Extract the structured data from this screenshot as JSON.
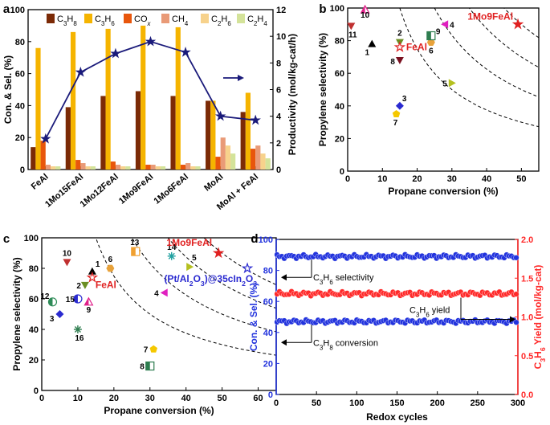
{
  "chart_data": [
    {
      "panel": "a",
      "type": "bar",
      "title": "",
      "xlabel": "",
      "ylabel": "Con. & Sel. (%)",
      "y2label": "Productivity (mol/kg-cat/h)",
      "ylim": [
        0,
        100
      ],
      "y2lim": [
        0,
        12
      ],
      "yticks": [
        "0",
        "20",
        "40",
        "60",
        "80",
        "100"
      ],
      "y2ticks": [
        "0",
        "2",
        "4",
        "6",
        "8",
        "10",
        "12"
      ],
      "categories": [
        "FeAl",
        "1Mo15FeAl",
        "1Mo12FeAl",
        "1Mo9FeAl",
        "1Mo6FeAl",
        "MoAl",
        "MoAl + FeAl"
      ],
      "series": [
        {
          "name": "C3H8",
          "color": "#7b2a06",
          "values": [
            14,
            39,
            46,
            49,
            46,
            43,
            36
          ]
        },
        {
          "name": "C3H6",
          "color": "#f5b400",
          "values": [
            76,
            86,
            88,
            90,
            89,
            43,
            48
          ]
        },
        {
          "name": "COx",
          "color": "#e8560c",
          "values": [
            18,
            6,
            5,
            3,
            3,
            8,
            13
          ]
        },
        {
          "name": "CH4",
          "color": "#e99a77",
          "values": [
            3,
            4,
            3,
            3,
            4,
            20,
            15
          ]
        },
        {
          "name": "C2H6",
          "color": "#f7d28c",
          "values": [
            2,
            2,
            2,
            2,
            2,
            15,
            10
          ]
        },
        {
          "name": "C2H4",
          "color": "#d4e39a",
          "values": [
            2,
            2,
            2,
            2,
            2,
            10,
            7
          ]
        }
      ],
      "line": {
        "name": "Productivity",
        "color": "#1a1a7a",
        "values": [
          2.3,
          7.3,
          8.7,
          9.6,
          8.8,
          4.0,
          3.7
        ]
      }
    },
    {
      "panel": "b",
      "type": "scatter",
      "xlabel": "Propane conversion (%)",
      "ylabel": "Propylene selectivity (%)",
      "xlim": [
        0,
        55
      ],
      "ylim": [
        0,
        100
      ],
      "xticks": [
        "0",
        "10",
        "20",
        "30",
        "40",
        "50"
      ],
      "yticks": [
        "0",
        "20",
        "40",
        "60",
        "80",
        "100"
      ],
      "points": [
        {
          "label": "1",
          "x": 7,
          "y": 78,
          "color": "#000000",
          "marker": "tri-up"
        },
        {
          "label": "2",
          "x": 15,
          "y": 79,
          "color": "#6b8e23",
          "marker": "tri-down"
        },
        {
          "label": "3",
          "x": 15,
          "y": 40,
          "color": "#2a2ad0",
          "marker": "diamond"
        },
        {
          "label": "4",
          "x": 28,
          "y": 90,
          "color": "#e020c0",
          "marker": "tri-left"
        },
        {
          "label": "5",
          "x": 30,
          "y": 54,
          "color": "#b5c020",
          "marker": "tri-right"
        },
        {
          "label": "6",
          "x": 24,
          "y": 79,
          "color": "#e8a23a",
          "marker": "hexagon"
        },
        {
          "label": "7",
          "x": 14,
          "y": 35,
          "color": "#f5c800",
          "marker": "pentagon"
        },
        {
          "label": "8",
          "x": 15,
          "y": 68,
          "color": "#7a1020",
          "marker": "tri-down"
        },
        {
          "label": "9",
          "x": 24,
          "y": 83,
          "color": "#2e7d4f",
          "marker": "half-square"
        },
        {
          "label": "10",
          "x": 5,
          "y": 99,
          "color": "#e0208a",
          "marker": "half-tri"
        },
        {
          "label": "11",
          "x": 1,
          "y": 89,
          "color": "#c03030",
          "marker": "tri-down"
        },
        {
          "label": "FeAl",
          "x": 15,
          "y": 76,
          "color": "#e02020",
          "marker": "star-open"
        },
        {
          "label": "1Mo9FeAl",
          "x": 49,
          "y": 90,
          "color": "#e02020",
          "marker": "star"
        }
      ]
    },
    {
      "panel": "c",
      "type": "scatter",
      "xlabel": "Propane conversion (%)",
      "ylabel": "Propylene selectivity (%)",
      "xlim": [
        0,
        65
      ],
      "ylim": [
        0,
        100
      ],
      "xticks": [
        "0",
        "10",
        "20",
        "30",
        "40",
        "50",
        "60"
      ],
      "yticks": [
        "0",
        "20",
        "40",
        "60",
        "80",
        "100"
      ],
      "points": [
        {
          "label": "1",
          "x": 14,
          "y": 78,
          "color": "#000000",
          "marker": "tri-up"
        },
        {
          "label": "2",
          "x": 12,
          "y": 69,
          "color": "#6b8e23",
          "marker": "tri-down"
        },
        {
          "label": "3",
          "x": 5,
          "y": 50,
          "color": "#2a2ad0",
          "marker": "diamond"
        },
        {
          "label": "4",
          "x": 34,
          "y": 64,
          "color": "#e020c0",
          "marker": "tri-left"
        },
        {
          "label": "5",
          "x": 41,
          "y": 81,
          "color": "#b5c020",
          "marker": "tri-right"
        },
        {
          "label": "6",
          "x": 19,
          "y": 80,
          "color": "#e8a23a",
          "marker": "hexagon"
        },
        {
          "label": "7",
          "x": 31,
          "y": 27,
          "color": "#f5c800",
          "marker": "pentagon"
        },
        {
          "label": "8",
          "x": 30,
          "y": 16,
          "color": "#2e7d4f",
          "marker": "half-square"
        },
        {
          "label": "9",
          "x": 13,
          "y": 58,
          "color": "#e0208a",
          "marker": "half-tri"
        },
        {
          "label": "10",
          "x": 7,
          "y": 84,
          "color": "#c03030",
          "marker": "tri-down"
        },
        {
          "label": "12",
          "x": 3,
          "y": 58,
          "color": "#2e8b57",
          "marker": "half-circle"
        },
        {
          "label": "13",
          "x": 26,
          "y": 91,
          "color": "#f0a030",
          "marker": "half-square"
        },
        {
          "label": "14",
          "x": 36,
          "y": 88,
          "color": "#20a0a0",
          "marker": "star-cross"
        },
        {
          "label": "15",
          "x": 10,
          "y": 60,
          "color": "#2a2ad0",
          "marker": "half-circle"
        },
        {
          "label": "16",
          "x": 10,
          "y": 40,
          "color": "#2e7d4f",
          "marker": "star-cross"
        },
        {
          "label": "FeAl",
          "x": 14,
          "y": 74,
          "color": "#e02020",
          "marker": "star-open"
        },
        {
          "label": "1Mo9FeAl",
          "x": 49,
          "y": 90,
          "color": "#e02020",
          "marker": "star"
        },
        {
          "label": "(Pt/Al2O3)@35cIn2O3",
          "x": 57,
          "y": 80,
          "color": "#2a2ad0",
          "marker": "star-open"
        }
      ]
    },
    {
      "panel": "d",
      "type": "scatter",
      "xlabel": "Redox cycles",
      "ylabel": "Con. & Sel. (%)",
      "y2label": "C3H6 Yield (mol/kg-cat)",
      "xlim": [
        0,
        300
      ],
      "ylim": [
        0,
        100
      ],
      "y2lim": [
        0,
        2.0
      ],
      "xticks": [
        "0",
        "50",
        "100",
        "150",
        "200",
        "250",
        "300"
      ],
      "yticks": [
        "0",
        "20",
        "40",
        "60",
        "80",
        "100"
      ],
      "y2ticks": [
        "0.0",
        "0.5",
        "1.0",
        "1.5",
        "2.0"
      ],
      "series": [
        {
          "name": "C3H6 selectivity",
          "axis": "left",
          "color": "#2233dd",
          "mean": 89
        },
        {
          "name": "C3H6 yield",
          "axis": "right",
          "color": "#ff2a2a",
          "mean": 1.3
        },
        {
          "name": "C3H8 conversion",
          "axis": "left",
          "color": "#2233dd",
          "mean": 47
        }
      ]
    }
  ],
  "labels": {
    "panel_a": "a",
    "panel_b": "b",
    "panel_c": "c",
    "panel_d": "d",
    "legend_c3h8_base": "C",
    "legend_c3h8_sub1": "3",
    "legend_c3h8_mid": "H",
    "legend_c3h8_sub2": "8",
    "legend_c3h6_sub2": "6",
    "legend_cox_base": "CO",
    "legend_cox_sub": "x",
    "legend_ch4": "CH",
    "legend_ch4_sub": "4",
    "legend_c2h6_sub1": "2",
    "legend_c2h4_sub2": "4",
    "c_pt_label": "(Pt/Al",
    "c_pt_sub2": "2",
    "c_pt_o3": "O",
    "c_pt_sub3": "3",
    "c_pt_rest": ")@35cIn",
    "d_sel_label": "C",
    "d_sel_text": " selectivity",
    "d_yield_text": " yield",
    "d_conv_text": " conversion",
    "d_y2label_main": "C",
    "d_y2label_rest": " Yield (mol/kg-cat)"
  }
}
